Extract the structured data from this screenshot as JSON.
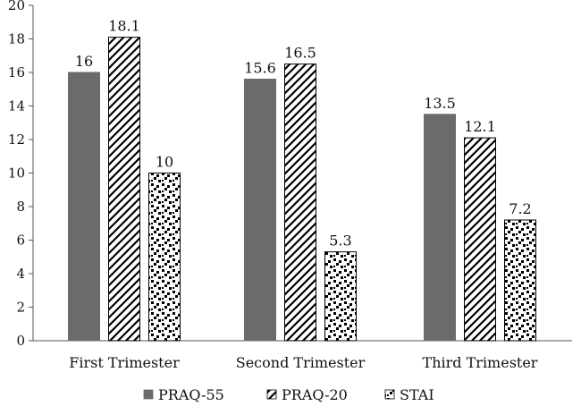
{
  "chart_data": {
    "type": "bar",
    "categories": [
      "First Trimester",
      "Second Trimester",
      "Third Trimester"
    ],
    "series": [
      {
        "name": "PRAQ-55",
        "values": [
          16,
          15.6,
          13.5
        ],
        "value_labels": [
          "16",
          "15.6",
          "13.5"
        ],
        "style": "solid",
        "color": "#6b6b6b"
      },
      {
        "name": "PRAQ-20",
        "values": [
          18.1,
          16.5,
          12.1
        ],
        "value_labels": [
          "18.1",
          "16.5",
          "12.1"
        ],
        "style": "diagonal-hatch",
        "color": "#000000"
      },
      {
        "name": "STAI",
        "values": [
          10,
          5.3,
          7.2
        ],
        "value_labels": [
          "10",
          "5.3",
          "7.2"
        ],
        "style": "dotted",
        "color": "#000000"
      }
    ],
    "ylim": [
      0,
      20
    ],
    "yticks": [
      "0",
      "2",
      "4",
      "6",
      "8",
      "10",
      "12",
      "14",
      "16",
      "18",
      "20"
    ],
    "title": "",
    "xlabel": "",
    "ylabel": "",
    "grid": false,
    "legend_position": "bottom"
  }
}
